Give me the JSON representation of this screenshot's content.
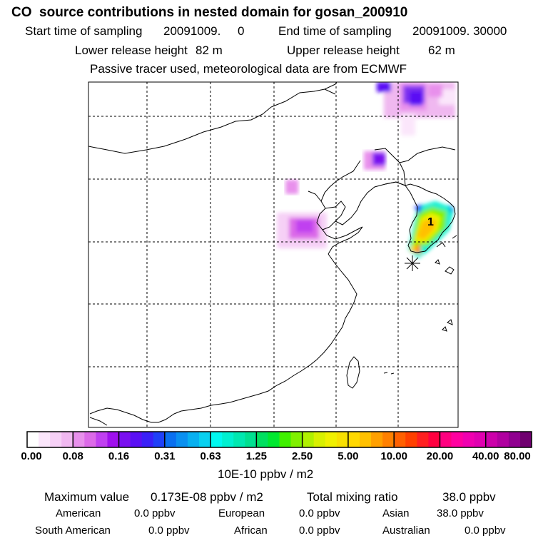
{
  "header": {
    "title": "CO  source contributions in nested domain for gosan_200910",
    "start_label": "Start time of sampling",
    "start_value": "20091009.     0",
    "end_label": "End time of sampling",
    "end_value": "20091009. 30000",
    "lower_label": "Lower release height",
    "lower_value": "82 m",
    "upper_label": "Upper release height",
    "upper_value": "62 m",
    "note": "Passive tracer used, meteorological data are from ECMWF"
  },
  "map": {
    "marker_label": "1",
    "release_marker": "asterisk-icon"
  },
  "chart_data": {
    "type": "heatmap",
    "title": "CO  source contributions in nested domain for gosan_200910",
    "colorbar": {
      "ticks": [
        "0.00",
        "0.08",
        "0.16",
        "0.31",
        "0.63",
        "1.25",
        "2.50",
        "5.00",
        "10.00",
        "20.00",
        "40.00",
        "80.00"
      ],
      "unit": "10E-10 ppbv / m2",
      "colors": [
        "#ffffff",
        "#fbe6fb",
        "#f6d0f6",
        "#f0b8f0",
        "#e890ec",
        "#dc6ae8",
        "#c040f0",
        "#a010ee",
        "#7a10f0",
        "#5a10f4",
        "#3a20f8",
        "#2040f8",
        "#0a70f0",
        "#0a90f0",
        "#08b0f0",
        "#08d0f0",
        "#00f8f0",
        "#00f0d0",
        "#00e8b0",
        "#00e090",
        "#00e060",
        "#00e830",
        "#40f000",
        "#80f000",
        "#b0f000",
        "#d8f000",
        "#f0f000",
        "#f8e000",
        "#ffd800",
        "#ffc000",
        "#ffa000",
        "#ff8000",
        "#ff6000",
        "#ff4000",
        "#ff2020",
        "#ff0040",
        "#ff0080",
        "#ff00a0",
        "#f000b0",
        "#e000b0",
        "#cc00aa",
        "#b000a0",
        "#900090",
        "#700070"
      ]
    }
  },
  "stats": {
    "max_label": "Maximum value",
    "max_value": "0.173E-08 ppbv / m2",
    "total_label": "Total mixing ratio",
    "total_value": "38.0 ppbv",
    "regions": [
      {
        "name": "American",
        "value": "0.0 ppbv"
      },
      {
        "name": "European",
        "value": "0.0 ppbv"
      },
      {
        "name": "Asian",
        "value": "38.0 ppbv"
      },
      {
        "name": "South American",
        "value": "0.0 ppbv"
      },
      {
        "name": "African",
        "value": "0.0 ppbv"
      },
      {
        "name": "Australian",
        "value": "0.0 ppbv"
      }
    ]
  }
}
